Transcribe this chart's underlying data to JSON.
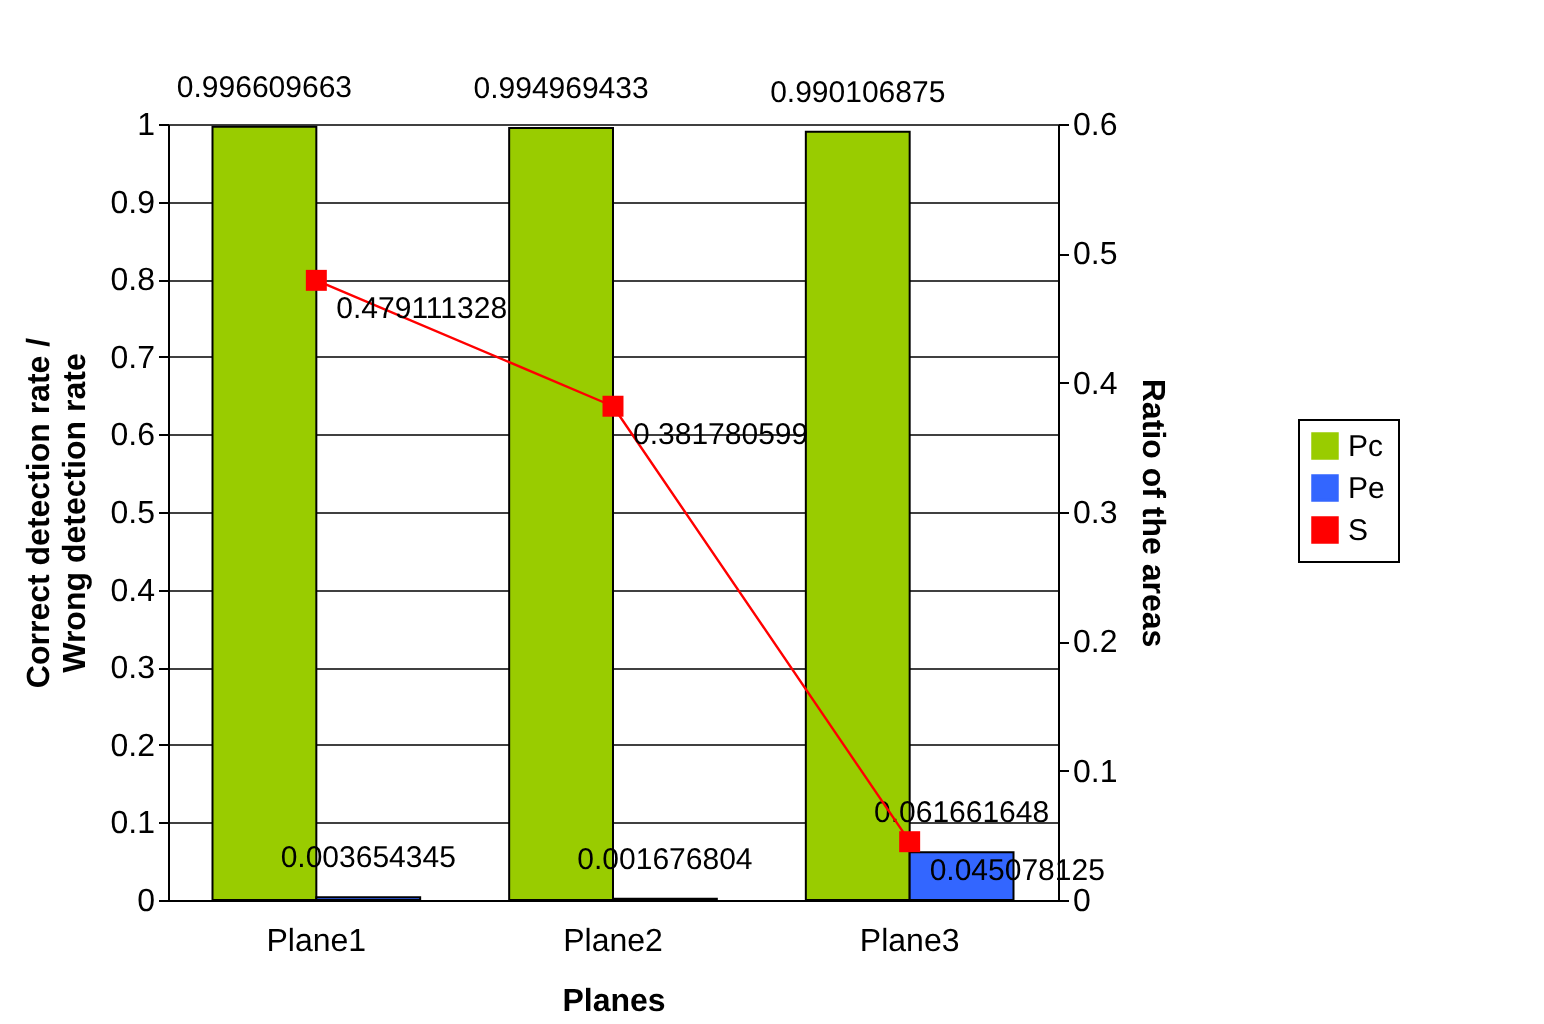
{
  "chart_data": {
    "type": "bar",
    "xlabel": "Planes",
    "ylabel": "Correct detection rate /\nWrong detection rate",
    "y2label": "Ratio of the areas",
    "categories": [
      "Plane1",
      "Plane2",
      "Plane3"
    ],
    "series": [
      {
        "name": "Pc",
        "color": "#99cc00",
        "values": [
          0.996609663,
          0.994969433,
          0.990106875
        ]
      },
      {
        "name": "Pe",
        "color": "#3366ff",
        "values": [
          0.003654345,
          0.001676804,
          0.061661648
        ]
      },
      {
        "name": "S",
        "type": "line",
        "axis": "y2",
        "color": "#ff0000",
        "marker": "square",
        "values": [
          0.479111328,
          0.381780599,
          0.045078125
        ]
      }
    ],
    "ylim": [
      0,
      1
    ],
    "yticks": [
      0,
      0.1,
      0.2,
      0.3,
      0.4,
      0.5,
      0.6,
      0.7,
      0.8,
      0.9,
      1
    ],
    "y2lim": [
      0,
      0.6
    ],
    "y2ticks": [
      0,
      0.1,
      0.2,
      0.3,
      0.4,
      0.5,
      0.6
    ],
    "grid": "y",
    "legend": "right",
    "data_labels": true
  }
}
